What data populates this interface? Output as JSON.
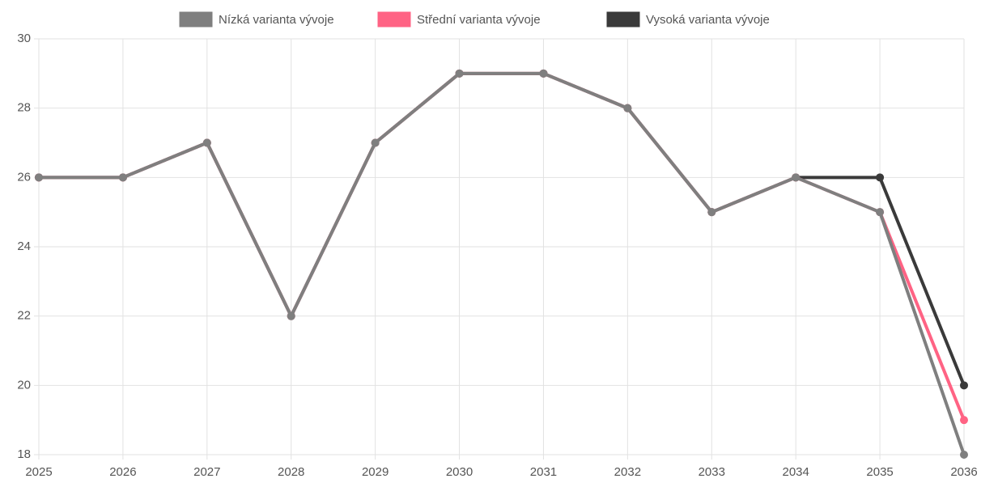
{
  "chart_data": {
    "type": "line",
    "categories": [
      "2025",
      "2026",
      "2027",
      "2028",
      "2029",
      "2030",
      "2031",
      "2032",
      "2033",
      "2034",
      "2035",
      "2036"
    ],
    "series": [
      {
        "name": "Nízká varianta vývoje",
        "color": "#7f7f7f",
        "values": [
          26,
          26,
          27,
          22,
          27,
          29,
          29,
          28,
          25,
          26,
          25,
          18
        ]
      },
      {
        "name": "Střední varianta vývoje",
        "color": "#ff6384",
        "values": [
          26,
          26,
          27,
          22,
          27,
          29,
          29,
          28,
          25,
          26,
          25,
          19
        ]
      },
      {
        "name": "Vysoká varianta vývoje",
        "color": "#3a3a3a",
        "values": [
          26,
          26,
          27,
          22,
          27,
          29,
          29,
          28,
          25,
          26,
          26,
          20
        ]
      }
    ],
    "ylim": [
      18,
      30
    ],
    "yticks": [
      18,
      20,
      22,
      24,
      26,
      28,
      30
    ],
    "grid": true,
    "legend": "top"
  }
}
